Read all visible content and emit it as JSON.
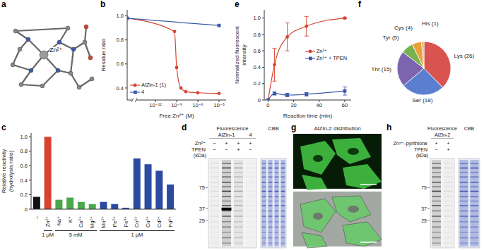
{
  "chart_data": [
    {
      "panel": "b",
      "type": "line",
      "log": "x",
      "x_label": "Free Zn²⁺ (M)",
      "y_label": "Residue ratio",
      "xlim": [
        1e-16,
        0.01
      ],
      "xticks": [
        {
          "value": 1e-12,
          "label": "10⁻¹²"
        },
        {
          "value": 1e-09,
          "label": "10⁻⁹"
        },
        {
          "value": 1e-06,
          "label": "10⁻⁶"
        },
        {
          "value": 0.001,
          "label": "10⁻³"
        }
      ],
      "ylim": [
        0.3,
        1.05
      ],
      "yticks": [
        0.4,
        0.6,
        0.8,
        {
          "value": 1,
          "label": "1.0"
        }
      ],
      "legend": "lower left",
      "series": [
        {
          "name": "AlZin-1 (1)",
          "color": "#d8432f",
          "marker": "circle",
          "x": [
            0,
            5e-10,
            1e-09,
            4e-09,
            2e-08,
            1e-06,
            0.001
          ],
          "values": [
            0.98,
            0.87,
            0.57,
            0.4,
            0.37,
            0.36,
            0.355
          ]
        },
        {
          "name": "4",
          "color": "#3a5aa8",
          "marker": "square",
          "x": [
            0,
            0.001
          ],
          "values": [
            0.98,
            0.92
          ]
        }
      ]
    },
    {
      "panel": "c",
      "type": "bar",
      "y_label": "Relative reactivity (hydrolysis ratio)",
      "categories": [
        "–",
        "Zn²⁺",
        "Na⁺",
        "K⁺",
        "Ca²⁺",
        "Mg²⁺",
        "Mn²⁺",
        "Fe²⁺",
        "Fe³⁺",
        "Co²⁺",
        "Cu²⁺",
        "Cd²⁺",
        "Pd²⁺"
      ],
      "values": [
        0.17,
        1,
        0.13,
        0.16,
        0.1,
        0.07,
        0.1,
        0.07,
        0.02,
        0.7,
        0.62,
        0.53,
        0.34
      ],
      "colors": [
        "#111111",
        "#d8432f",
        "#4aa84a",
        "#4aa84a",
        "#4aa84a",
        "#4aa84a",
        "#2c4aa0",
        "#2c4aa0",
        "#2c4aa0",
        "#2c4aa0",
        "#2c4aa0",
        "#2c4aa0",
        "#2c4aa0"
      ],
      "ylim": [
        0,
        1.05
      ],
      "yticks": [
        0,
        0.2,
        0.4,
        0.6,
        0.8,
        {
          "value": 1,
          "label": "1.0"
        }
      ],
      "annotations": [
        {
          "text": "1 μM",
          "from": "Zn²⁺",
          "to": "Zn²⁺"
        },
        {
          "text": "5 mM",
          "from": "Na⁺",
          "to": "Mg²⁺"
        },
        {
          "text": "1 μM",
          "from": "Mn²⁺",
          "to": "Pd²⁺"
        }
      ]
    },
    {
      "panel": "e",
      "type": "line",
      "x_label": "Reaction time (min)",
      "y_label": "Normalized fluorescent intensity",
      "x": [
        0,
        5,
        15,
        30,
        60
      ],
      "xlim": [
        -3,
        65
      ],
      "xticks": [
        0,
        20,
        40,
        60
      ],
      "ylim": [
        0,
        1.1
      ],
      "yticks": [
        0,
        0.2,
        0.4,
        0.6,
        0.8,
        {
          "value": 1,
          "label": "1.0"
        }
      ],
      "legend": "right",
      "series": [
        {
          "name": "Zn²⁺",
          "color": "#d8432f",
          "marker": "circle",
          "values": [
            0,
            0.43,
            0.77,
            0.9,
            1
          ],
          "error": [
            0,
            0.2,
            0.17,
            0.12,
            0.01
          ]
        },
        {
          "name": "Zn²⁺ + TPEN",
          "color": "#3a5aa8",
          "marker": "square",
          "values": [
            0,
            0.08,
            0.06,
            0.07,
            0.11
          ],
          "error": [
            0,
            0.02,
            0.02,
            0.02,
            0.05
          ]
        }
      ]
    },
    {
      "panel": "f",
      "type": "pie",
      "categories": [
        "Lys",
        "Ser",
        "Thr",
        "Tyr",
        "Cys",
        "His"
      ],
      "values": [
        26,
        18,
        15,
        5,
        4,
        1
      ],
      "value_labels": [
        "Lys (26)",
        "Ser (18)",
        "Thr (15)",
        "Tyr (5)",
        "Cys (4)",
        "His (1)"
      ],
      "colors": [
        "#d9534f",
        "#5a7fd0",
        "#7d64b0",
        "#78b24e",
        "#e9a23b",
        "#d9b36a"
      ],
      "data_labels": true
    }
  ],
  "images": [
    {
      "panel": "a",
      "type": "structure",
      "labels": [
        "Zn²⁺"
      ]
    },
    {
      "panel": "d",
      "type": "gel",
      "columns": [
        "Fluorescence",
        "CBB"
      ],
      "probes": [
        {
          "label": "AlZin-1",
          "lanes": 3
        },
        {
          "label": "4",
          "lanes": 1
        }
      ],
      "rows": [
        {
          "label": "Zn²⁺",
          "lanes": [
            "−",
            "+",
            "+",
            "+"
          ]
        },
        {
          "label": "TPEN",
          "lanes": [
            "−",
            "−",
            "+",
            "−"
          ]
        }
      ],
      "marker_unit": "(kDa)",
      "markers": [
        75,
        37,
        25
      ]
    },
    {
      "panel": "g",
      "type": "micrograph",
      "title": "AlZin-2 distribution"
    },
    {
      "panel": "h",
      "type": "gel",
      "columns": [
        "Fluorescence",
        "CBB"
      ],
      "probes": [
        {
          "label": "AlZin-2",
          "lanes": 2
        }
      ],
      "rows": [
        {
          "label": "Zn²⁺–pyrithione",
          "lanes": [
            "+",
            "+"
          ]
        },
        {
          "label": "TPEN",
          "lanes": [
            "−",
            "+"
          ]
        }
      ],
      "marker_unit": "(kDa)",
      "markers": [
        75,
        37,
        25
      ]
    }
  ]
}
